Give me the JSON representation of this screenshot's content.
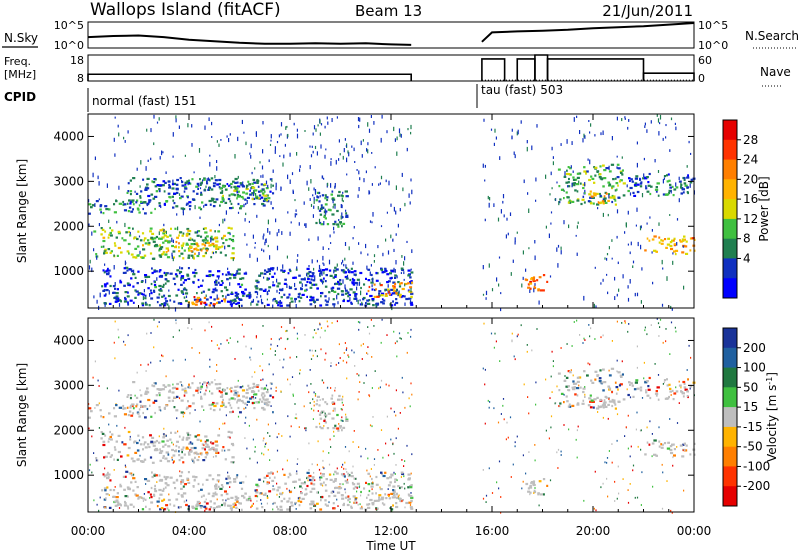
{
  "header": {
    "station": "Wallops Island (fitACF)",
    "beam": "Beam 13",
    "date": "21/Jun/2011"
  },
  "strip_panels": {
    "nsky_label": "N.Sky",
    "nsky_ticks": [
      "10^5",
      "10^0"
    ],
    "nsearch_label": "N.Search",
    "nsearch_ticks": [
      "10^5",
      "10^0"
    ],
    "freq_label": "Freq.",
    "freq_unit": "[MHz]",
    "freq_ticks": [
      "18",
      "8"
    ],
    "nave_label": "Nave",
    "nave_ticks": [
      "60",
      "0"
    ],
    "cpid_label": "CPID",
    "cpid_modes": [
      {
        "text": "normal (fast) 151",
        "start_hour": 0
      },
      {
        "text": "tau (fast) 503",
        "start_hour": 15.5
      }
    ]
  },
  "axes": {
    "ylabel": "Slant Range [km]",
    "xlabel": "Time UT",
    "y_ticks": [
      "4000",
      "3000",
      "2000",
      "1000"
    ],
    "x_ticks": [
      "00:00",
      "04:00",
      "08:00",
      "12:00",
      "16:00",
      "20:00",
      "00:00"
    ]
  },
  "colorbars": {
    "power": {
      "label": "Power [dB]",
      "ticks": [
        "28",
        "24",
        "20",
        "16",
        "12",
        "8",
        "4"
      ],
      "colors": [
        "#e60000",
        "#ff3300",
        "#ff7f00",
        "#ffb300",
        "#d9d900",
        "#40c040",
        "#207f50",
        "#1030c0",
        "#0000ff"
      ]
    },
    "velocity": {
      "label": "Velocity [m s",
      "label_sup": "-1",
      "label_end": "]",
      "ticks": [
        "200",
        "100",
        "50",
        "15",
        "-15",
        "-50",
        "-100",
        "-200"
      ],
      "colors": [
        "#1a3399",
        "#2060a0",
        "#207840",
        "#40c040",
        "#bebebe",
        "#ffb300",
        "#ff7f00",
        "#ff3300",
        "#e60000"
      ]
    }
  },
  "chart_data": {
    "type": "heatmap",
    "x_range_hours": [
      0,
      24
    ],
    "y_range_km": [
      180,
      4500
    ],
    "data_gap_hours": [
      12.8,
      15.6
    ],
    "nsky_hours": [
      0,
      1,
      2,
      3,
      4,
      5,
      6,
      7,
      8,
      9,
      10,
      11,
      12,
      12.8,
      15.6,
      16,
      17,
      18,
      19,
      20,
      21,
      22,
      23,
      24
    ],
    "nsky_log10": [
      2.1,
      2.3,
      2.4,
      2.1,
      1.6,
      1.3,
      1.0,
      0.8,
      0.8,
      0.9,
      0.8,
      0.9,
      0.7,
      0.6,
      1.2,
      3.0,
      3.2,
      3.3,
      3.5,
      3.8,
      4.0,
      4.2,
      4.5,
      4.8
    ],
    "frequency_mhz": [
      {
        "start": 0,
        "end": 12.8,
        "value": 10.6
      },
      {
        "start": 15.6,
        "end": 16.5,
        "value": 16.5
      },
      {
        "start": 17.0,
        "end": 17.7,
        "value": 16.5
      },
      {
        "start": 17.7,
        "end": 18.2,
        "value": 18.0
      },
      {
        "start": 18.2,
        "end": 22.0,
        "value": 16.5
      },
      {
        "start": 22.0,
        "end": 24.0,
        "value": 11.0
      }
    ],
    "nave": [
      {
        "start": 0,
        "end": 12.8,
        "value": 15
      },
      {
        "start": 15.6,
        "end": 24,
        "value": 2
      }
    ],
    "power_echo_bands": [
      {
        "t0": 0.0,
        "t1": 2.5,
        "r0": 2300,
        "r1": 2600,
        "db": 10
      },
      {
        "t0": 0.2,
        "t1": 5.8,
        "r0": 1300,
        "r1": 2000,
        "db": 14
      },
      {
        "t0": 3.0,
        "t1": 5.2,
        "r0": 1450,
        "r1": 1700,
        "db": 21
      },
      {
        "t0": 1.5,
        "t1": 7.3,
        "r0": 2400,
        "r1": 3100,
        "db": 9
      },
      {
        "t0": 5.2,
        "t1": 7.2,
        "r0": 2600,
        "r1": 3000,
        "db": 13
      },
      {
        "t0": 0.5,
        "t1": 12.8,
        "r0": 250,
        "r1": 1100,
        "db": 7
      },
      {
        "t0": 3.8,
        "t1": 5.5,
        "r0": 250,
        "r1": 450,
        "db": 24
      },
      {
        "t0": 9.0,
        "t1": 10.2,
        "r0": 2000,
        "r1": 2800,
        "db": 11
      },
      {
        "t0": 11.0,
        "t1": 12.8,
        "r0": 450,
        "r1": 800,
        "db": 22
      },
      {
        "t0": 17.2,
        "t1": 18.2,
        "r0": 550,
        "r1": 950,
        "db": 26
      },
      {
        "t0": 18.6,
        "t1": 21.2,
        "r0": 2500,
        "r1": 3400,
        "db": 12
      },
      {
        "t0": 19.8,
        "t1": 20.8,
        "r0": 2500,
        "r1": 2800,
        "db": 20
      },
      {
        "t0": 22.0,
        "t1": 24.0,
        "r0": 1400,
        "r1": 1800,
        "db": 21
      },
      {
        "t0": 21.3,
        "t1": 24.0,
        "r0": 2700,
        "r1": 3200,
        "db": 9
      }
    ]
  }
}
